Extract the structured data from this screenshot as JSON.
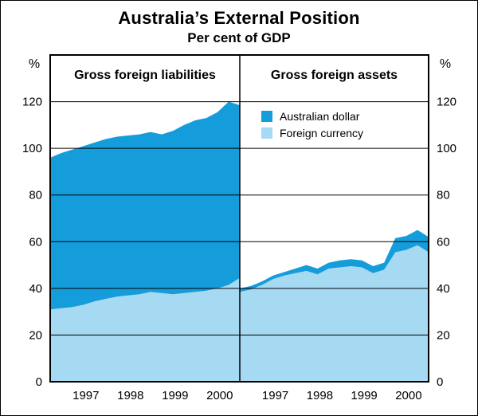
{
  "header": {
    "title": "Australia’s External Position",
    "subtitle": "Per cent of GDP"
  },
  "chart_data": {
    "type": "area",
    "stacked": true,
    "grid": "horizontal",
    "y_axis_symbol": "%",
    "ylim": [
      0,
      140
    ],
    "yticks": [
      0,
      20,
      40,
      60,
      80,
      100,
      120
    ],
    "x_quarters": [
      1996.5,
      1996.75,
      1997.0,
      1997.25,
      1997.5,
      1997.75,
      1998.0,
      1998.25,
      1998.5,
      1998.75,
      1999.0,
      1999.25,
      1999.5,
      1999.75,
      2000.0,
      2000.25,
      2000.5,
      2000.75
    ],
    "year_labels": [
      "1997",
      "1998",
      "1999",
      "2000"
    ],
    "legend": [
      {
        "label": "Australian dollar",
        "color": "#149CDB"
      },
      {
        "label": "Foreign currency",
        "color": "#A6D9F2"
      }
    ],
    "panels": [
      {
        "title": "Gross foreign liabilities",
        "series": [
          {
            "name": "Foreign currency",
            "color": "#A6D9F2",
            "values": [
              31,
              31.5,
              32,
              33,
              34.5,
              35.5,
              36.5,
              37,
              37.5,
              38.5,
              38,
              37.5,
              38,
              38.5,
              39,
              40,
              41.5,
              44.5
            ]
          },
          {
            "name": "Australian dollar",
            "color": "#149CDB",
            "values": [
              65,
              66.5,
              67.5,
              68,
              68,
              68.5,
              68.5,
              68.5,
              68.5,
              68.5,
              68,
              70,
              72,
              73.5,
              74,
              75.5,
              78.5,
              74
            ]
          }
        ],
        "totals": [
          96,
          98,
          99.5,
          101,
          102.5,
          104,
          105,
          105.5,
          106,
          107,
          106,
          107.5,
          110,
          112,
          113,
          115.5,
          120,
          118.5
        ]
      },
      {
        "title": "Gross foreign assets",
        "series": [
          {
            "name": "Foreign currency",
            "color": "#A6D9F2",
            "values": [
              38.5,
              39.5,
              41.5,
              44,
              45.5,
              46.5,
              47.5,
              46,
              48.5,
              49,
              49.5,
              49,
              46.5,
              48,
              55.5,
              56.5,
              58.5,
              55.5
            ]
          },
          {
            "name": "Australian dollar",
            "color": "#149CDB",
            "values": [
              1.5,
              1.5,
              1.5,
              1.5,
              1.5,
              2,
              2.5,
              2.5,
              2.5,
              3,
              3,
              3,
              3,
              3,
              6,
              6,
              6.5,
              6.5
            ]
          }
        ],
        "totals": [
          40,
          41,
          43,
          45.5,
          47,
          48.5,
          50,
          48.5,
          51,
          52,
          52.5,
          52,
          49.5,
          51,
          61.5,
          62.5,
          65,
          62
        ]
      }
    ]
  }
}
